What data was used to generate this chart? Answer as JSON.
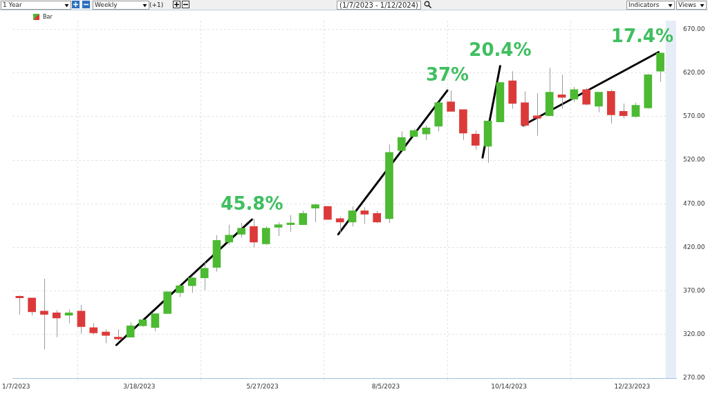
{
  "chart_data": {
    "type": "candlestick",
    "title": "(1/7/2023 - 1/12/2024)",
    "annotations": [
      "1 Year",
      "Weekly",
      "(+1)",
      "Indicators",
      "Views",
      {
        "text": "45.8%",
        "x": "2023-05-21",
        "y": 452
      },
      {
        "text": "37%",
        "x": "2023-09-09",
        "y": 600
      },
      {
        "text": "20.4%",
        "x": "2023-10-09",
        "y": 628
      },
      {
        "text": "17.4%",
        "x": "2024-01-07",
        "y": 644
      }
    ],
    "series": [
      {
        "name": "Bar",
        "type": "candlestick",
        "x": [
          "2023-01-09",
          "2023-01-16",
          "2023-01-23",
          "2023-01-30",
          "2023-02-06",
          "2023-02-13",
          "2023-02-20",
          "2023-02-27",
          "2023-03-06",
          "2023-03-13",
          "2023-03-20",
          "2023-03-27",
          "2023-04-03",
          "2023-04-10",
          "2023-04-17",
          "2023-04-24",
          "2023-05-01",
          "2023-05-08",
          "2023-05-15",
          "2023-05-22",
          "2023-05-29",
          "2023-06-05",
          "2023-06-12",
          "2023-06-19",
          "2023-06-26",
          "2023-07-03",
          "2023-07-10",
          "2023-07-17",
          "2023-07-24",
          "2023-07-31",
          "2023-08-07",
          "2023-08-14",
          "2023-08-21",
          "2023-08-28",
          "2023-09-04",
          "2023-09-11",
          "2023-09-18",
          "2023-09-25",
          "2023-10-02",
          "2023-10-09",
          "2023-10-16",
          "2023-10-23",
          "2023-10-30",
          "2023-11-06",
          "2023-11-13",
          "2023-11-20",
          "2023-11-27",
          "2023-12-04",
          "2023-12-11",
          "2023-12-18",
          "2023-12-25",
          "2024-01-01",
          "2024-01-08"
        ],
        "ohlc": [
          [
            364,
            365,
            343,
            362
          ],
          [
            362,
            362,
            342,
            346
          ],
          [
            347,
            384,
            303,
            343
          ],
          [
            345,
            348,
            317,
            339
          ],
          [
            342,
            349,
            333,
            345
          ],
          [
            347,
            354,
            321,
            329
          ],
          [
            328,
            333,
            320,
            322
          ],
          [
            323,
            326,
            310,
            319
          ],
          [
            317,
            326,
            313,
            315
          ],
          [
            317,
            334,
            317,
            330
          ],
          [
            330,
            337,
            329,
            337
          ],
          [
            328,
            344,
            324,
            344
          ],
          [
            344,
            369,
            344,
            369
          ],
          [
            368,
            377,
            363,
            376
          ],
          [
            376,
            386,
            368,
            385
          ],
          [
            385,
            404,
            371,
            396
          ],
          [
            397,
            434,
            392,
            428
          ],
          [
            426,
            446,
            423,
            434
          ],
          [
            435,
            448,
            431,
            442
          ],
          [
            444,
            453,
            420,
            426
          ],
          [
            424,
            444,
            423,
            442
          ],
          [
            443,
            449,
            433,
            446
          ],
          [
            446,
            457,
            438,
            448
          ],
          [
            446,
            462,
            446,
            459
          ],
          [
            465,
            470,
            449,
            469
          ],
          [
            467,
            467,
            452,
            452
          ],
          [
            453,
            455,
            436,
            449
          ],
          [
            449,
            467,
            444,
            462
          ],
          [
            462,
            466,
            447,
            458
          ],
          [
            459,
            462,
            448,
            449
          ],
          [
            453,
            538,
            448,
            529
          ],
          [
            531,
            553,
            531,
            546
          ],
          [
            547,
            556,
            547,
            554
          ],
          [
            550,
            560,
            543,
            557
          ],
          [
            559,
            587,
            553,
            586
          ],
          [
            587,
            600,
            576,
            576
          ],
          [
            578,
            578,
            543,
            551
          ],
          [
            550,
            554,
            532,
            537
          ],
          [
            536,
            565,
            517,
            565
          ],
          [
            564,
            609,
            564,
            609
          ],
          [
            611,
            622,
            579,
            585
          ],
          [
            586,
            599,
            558,
            560
          ],
          [
            571,
            597,
            548,
            568
          ],
          [
            571,
            626,
            571,
            598
          ],
          [
            595,
            618,
            579,
            592
          ],
          [
            590,
            604,
            587,
            601
          ],
          [
            601,
            603,
            583,
            584
          ],
          [
            582,
            598,
            575,
            598
          ],
          [
            599,
            601,
            562,
            572
          ],
          [
            576,
            585,
            568,
            571
          ],
          [
            570,
            586,
            569,
            583
          ],
          [
            580,
            619,
            579,
            618
          ],
          [
            622,
            643,
            610,
            643
          ]
        ],
        "colors": [
          "#dc3a3a",
          "#dc3a3a",
          "#dc3a3a",
          "#dc3a3a",
          "#4cba32",
          "#dc3a3a",
          "#dc3a3a",
          "#dc3a3a",
          "#dc3a3a",
          "#4cba32",
          "#4cba32",
          "#4cba32",
          "#4cba32",
          "#4cba32",
          "#4cba32",
          "#4cba32",
          "#4cba32",
          "#4cba32",
          "#4cba32",
          "#dc3a3a",
          "#4cba32",
          "#4cba32",
          "#4cba32",
          "#4cba32",
          "#4cba32",
          "#dc3a3a",
          "#dc3a3a",
          "#4cba32",
          "#dc3a3a",
          "#dc3a3a",
          "#4cba32",
          "#4cba32",
          "#4cba32",
          "#4cba32",
          "#4cba32",
          "#dc3a3a",
          "#dc3a3a",
          "#dc3a3a",
          "#4cba32",
          "#4cba32",
          "#dc3a3a",
          "#dc3a3a",
          "#dc3a3a",
          "#4cba32",
          "#dc3a3a",
          "#4cba32",
          "#dc3a3a",
          "#4cba32",
          "#dc3a3a",
          "#dc3a3a",
          "#4cba32",
          "#4cba32",
          "#4cba32"
        ]
      },
      {
        "type": "line",
        "color": "#000000",
        "x": [
          "2023-03-05",
          "2023-05-21"
        ],
        "values": [
          308,
          452
        ]
      },
      {
        "type": "line",
        "color": "#000000",
        "x": [
          "2023-07-09",
          "2023-09-09"
        ],
        "values": [
          435,
          600
        ]
      },
      {
        "type": "line",
        "color": "#000000",
        "x": [
          "2023-09-29",
          "2023-10-09"
        ],
        "values": [
          523,
          628
        ]
      },
      {
        "type": "line",
        "color": "#000000",
        "x": [
          "2023-10-22",
          "2024-01-07"
        ],
        "values": [
          560,
          644
        ]
      }
    ],
    "xlim": [
      "2023-01-05",
      "2024-01-17"
    ],
    "xticks": [
      {
        "value": "2023-01-07",
        "label": "1/7/2023"
      },
      {
        "value": "2023-03-18",
        "label": "3/18/2023"
      },
      {
        "value": "2023-05-27",
        "label": "5/27/2023"
      },
      {
        "value": "2023-08-05",
        "label": "8/5/2023"
      },
      {
        "value": "2023-10-14",
        "label": "10/14/2023"
      },
      {
        "value": "2023-12-23",
        "label": "12/23/2023"
      }
    ],
    "ylim": [
      270,
      680
    ],
    "yticks": [
      {
        "value": 270,
        "label": "270.00"
      },
      {
        "value": 320,
        "label": "320.00"
      },
      {
        "value": 370,
        "label": "370.00"
      },
      {
        "value": 420,
        "label": "420.00"
      },
      {
        "value": 470,
        "label": "470.00"
      },
      {
        "value": 520,
        "label": "520.00"
      },
      {
        "value": 570,
        "label": "570.00"
      },
      {
        "value": 620,
        "label": "620.00"
      },
      {
        "value": 670,
        "label": "670.00"
      }
    ],
    "bands": [
      {
        "axis": "x",
        "from": "2024-01-11",
        "to": "2024-01-17",
        "color": "#e6edf7"
      }
    ],
    "grid": true,
    "legend": "top left",
    "marker": "none"
  }
}
